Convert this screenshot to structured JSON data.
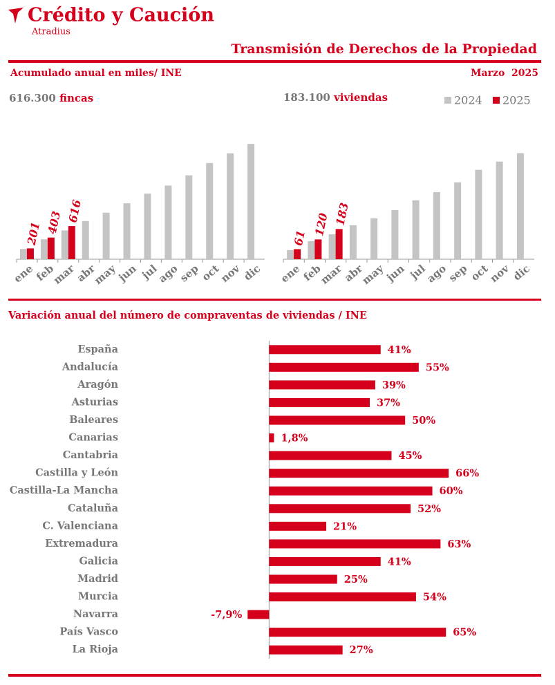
{
  "header": {
    "brand": "Crédito y Caución",
    "sub_brand": "Atradius",
    "title": "Transmisión de Derechos de la Propiedad",
    "subtitle": "Acumulado anual en miles/ INE",
    "date": "Marzo  2025"
  },
  "chart_data": [
    {
      "type": "bar",
      "headline_value": "616.300",
      "headline_unit": "fincas",
      "categories": [
        "ene",
        "feb",
        "mar",
        "abr",
        "may",
        "jun",
        "jul",
        "ago",
        "sep",
        "oct",
        "nov",
        "dic"
      ],
      "series": [
        {
          "name": "2024",
          "color": "#c4c4c4",
          "values": [
            190,
            370,
            535,
            710,
            865,
            1040,
            1220,
            1370,
            1560,
            1790,
            1970,
            2145
          ]
        },
        {
          "name": "2025",
          "color": "#d5001c",
          "values": [
            201,
            403,
            616,
            null,
            null,
            null,
            null,
            null,
            null,
            null,
            null,
            null
          ]
        }
      ],
      "ylim": [
        0,
        2700
      ]
    },
    {
      "type": "bar",
      "headline_value": "183.100",
      "headline_unit": "viviendas",
      "legend": "top-right",
      "categories": [
        "ene",
        "feb",
        "mar",
        "abr",
        "may",
        "jun",
        "jul",
        "ago",
        "sep",
        "oct",
        "nov",
        "dic"
      ],
      "series": [
        {
          "name": "2024",
          "color": "#c4c4c4",
          "values": [
            55,
            109,
            151,
            206,
            248,
            298,
            357,
            407,
            466,
            542,
            592,
            643
          ]
        },
        {
          "name": "2025",
          "color": "#d5001c",
          "values": [
            61,
            120,
            183,
            null,
            null,
            null,
            null,
            null,
            null,
            null,
            null,
            null
          ]
        }
      ],
      "ylim": [
        0,
        880
      ]
    },
    {
      "type": "bar",
      "orientation": "horizontal",
      "title": "Variación anual del número de compraventas de viviendas / INE",
      "color": "#d5001c",
      "categories": [
        "España",
        "Andalucía",
        "Aragón",
        "Asturias",
        "Baleares",
        "Canarias",
        "Cantabria",
        "Castilla y León",
        "Castilla-La Mancha",
        "Cataluña",
        "C. Valenciana",
        "Extremadura",
        "Galicia",
        "Madrid",
        "Murcia",
        "Navarra",
        "País Vasco",
        "La Rioja"
      ],
      "values": [
        41,
        55,
        39,
        37,
        50,
        1.8,
        45,
        66,
        60,
        52,
        21,
        63,
        41,
        25,
        54,
        -7.9,
        65,
        27
      ],
      "value_labels": [
        "41%",
        "55%",
        "39%",
        "37%",
        "50%",
        "1,8%",
        "45%",
        "66%",
        "60%",
        "52%",
        "21%",
        "63%",
        "41%",
        "25%",
        "54%",
        "-7,9%",
        "65%",
        "27%"
      ],
      "xlim": [
        -10,
        100
      ]
    }
  ]
}
